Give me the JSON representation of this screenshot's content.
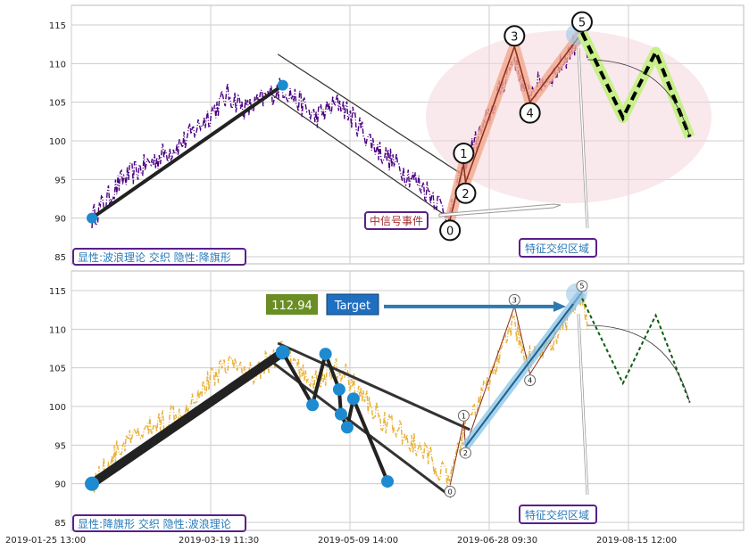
{
  "chart_data": [
    {
      "type": "line",
      "panel": "top",
      "ylim": [
        84,
        117
      ],
      "yticks": [
        85,
        90,
        95,
        100,
        105,
        110,
        115
      ],
      "grid": true,
      "price_color": "#4b0082",
      "trend_points": [
        {
          "x": 0,
          "y": 90
        },
        {
          "x": 0.308,
          "y": 107.2
        }
      ],
      "channel_upper": [
        {
          "x": 0.3,
          "y": 111.2
        },
        {
          "x": 0.61,
          "y": 95
        }
      ],
      "channel_lower": [
        {
          "x": 0.29,
          "y": 106
        },
        {
          "x": 0.58,
          "y": 89.8
        }
      ],
      "wave_points": [
        {
          "label": "0",
          "x": 0.578,
          "y": 89.8
        },
        {
          "label": "1",
          "x": 0.6,
          "y": 97.0
        },
        {
          "label": "2",
          "x": 0.603,
          "y": 94.6
        },
        {
          "label": "3",
          "x": 0.682,
          "y": 112.2
        },
        {
          "label": "4",
          "x": 0.707,
          "y": 105.0
        },
        {
          "label": "5",
          "x": 0.791,
          "y": 114.0
        }
      ],
      "projection": [
        {
          "x": 0.791,
          "y": 114.0
        },
        {
          "x": 0.857,
          "y": 103.0
        },
        {
          "x": 0.91,
          "y": 111.5
        },
        {
          "x": 0.965,
          "y": 100.5
        }
      ],
      "annotations": {
        "pattern_label": "显性:波浪理论 交织 隐性:降旗形",
        "signal_label": "中信号事件",
        "zone_label": "特征交织区域"
      }
    },
    {
      "type": "line",
      "panel": "bottom",
      "ylim": [
        84,
        117
      ],
      "yticks": [
        85,
        90,
        95,
        100,
        105,
        110,
        115
      ],
      "grid": true,
      "price_color": "#e8b23a",
      "trend_points": [
        {
          "x": 0,
          "y": 90
        },
        {
          "x": 0.308,
          "y": 107.0
        }
      ],
      "flag_points": [
        {
          "x": 0.308,
          "y": 107.0
        },
        {
          "x": 0.356,
          "y": 100.2
        },
        {
          "x": 0.377,
          "y": 106.8
        },
        {
          "x": 0.399,
          "y": 102.2
        },
        {
          "x": 0.402,
          "y": 99.0
        },
        {
          "x": 0.412,
          "y": 97.3
        },
        {
          "x": 0.422,
          "y": 101.0
        },
        {
          "x": 0.477,
          "y": 90.3
        }
      ],
      "channel_upper": [
        {
          "x": 0.3,
          "y": 108.2
        },
        {
          "x": 0.61,
          "y": 97
        }
      ],
      "channel_lower": [
        {
          "x": 0.29,
          "y": 105.8
        },
        {
          "x": 0.58,
          "y": 88.3
        }
      ],
      "target_value": 112.94,
      "target_label": "Target",
      "wave_points": [
        {
          "label": "0",
          "x": 0.578,
          "y": 89.8
        },
        {
          "label": "1",
          "x": 0.6,
          "y": 98.0
        },
        {
          "label": "2",
          "x": 0.603,
          "y": 94.8
        },
        {
          "label": "3",
          "x": 0.682,
          "y": 113.0
        },
        {
          "label": "4",
          "x": 0.707,
          "y": 104.2
        },
        {
          "label": "5",
          "x": 0.791,
          "y": 114.8
        }
      ],
      "projection": [
        {
          "x": 0.791,
          "y": 114.0
        },
        {
          "x": 0.857,
          "y": 103.0
        },
        {
          "x": 0.91,
          "y": 111.8
        },
        {
          "x": 0.965,
          "y": 100.5
        }
      ],
      "annotations": {
        "pattern_label": "显性:降旗形 交织 隐性:波浪理论",
        "zone_label": "特征交织区域"
      }
    }
  ],
  "x_ticks": [
    "2019-01-25 13:00",
    "2019-03-19 11:30",
    "2019-05-09 14:00",
    "2019-06-28 09:30",
    "2019-08-15 12:00"
  ],
  "colors": {
    "grid": "#cccccc",
    "trend": "#222222",
    "dot": "#1e8bd0",
    "label_border": "#5a1f8a",
    "label_text": "#2a7ab8",
    "signal_text": "#a33030",
    "wave_highlight": "#f2a88c",
    "ellipse": "#f4d6dc",
    "projection_glow": "#c8f08a",
    "target_value_bg": "#6a8e23",
    "target_bg": "#1f6fc0",
    "target_arrow": "#2b7bb0"
  }
}
